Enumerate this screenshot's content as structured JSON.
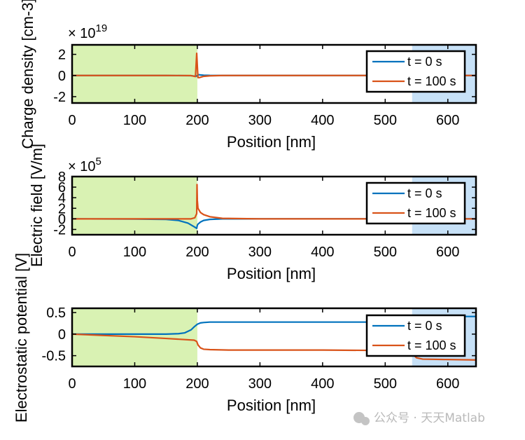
{
  "watermark": "公众号 · 天天Matlab",
  "colors": {
    "series0": "#0072BD",
    "series1": "#D95319",
    "region_left": "#D9F2B3",
    "region_right": "#C7E1F7"
  },
  "chart_data": [
    {
      "type": "line",
      "name": "charge-density",
      "xlabel": "Position [nm]",
      "ylabel": "Charge density [cm-3]",
      "ylabel_display": "Charge density [cm-3]",
      "multiplier_prefix": "× 10",
      "multiplier_exp": "19",
      "xlim": [
        0,
        645
      ],
      "ylim": [
        -2.6,
        2.9
      ],
      "xticks": [
        0,
        100,
        200,
        300,
        400,
        500,
        600
      ],
      "xtick_labels": [
        "0",
        "100",
        "200",
        "300",
        "400",
        "500",
        "600"
      ],
      "yticks": [
        -2,
        0,
        2
      ],
      "ytick_labels": [
        "-2",
        "0",
        "2"
      ],
      "regions": [
        {
          "x0": 0,
          "x1": 200,
          "color": "#D9F2B3"
        },
        {
          "x0": 543,
          "x1": 645,
          "color": "#C7E1F7"
        }
      ],
      "legend": "top-right",
      "series": [
        {
          "name": "t = 0 s",
          "x": [
            0,
            150,
            190,
            198,
            200,
            202,
            205,
            210,
            220,
            240,
            300,
            400,
            500,
            540,
            543,
            546,
            600,
            645
          ],
          "y": [
            0,
            0,
            -0.02,
            -0.08,
            0,
            0.08,
            0.05,
            0.03,
            0.01,
            0,
            0,
            0,
            0,
            0,
            0,
            0,
            0,
            0
          ]
        },
        {
          "name": "t = 100 s",
          "x": [
            0,
            150,
            190,
            197,
            199,
            200,
            201,
            203,
            210,
            220,
            240,
            300,
            400,
            500,
            540,
            543,
            546,
            600,
            645
          ],
          "y": [
            0,
            0,
            -0.01,
            -0.1,
            2.1,
            0.9,
            -0.2,
            -0.2,
            -0.08,
            -0.03,
            0,
            0,
            0,
            0,
            0,
            -0.05,
            0,
            0,
            0
          ]
        }
      ]
    },
    {
      "type": "line",
      "name": "electric-field",
      "xlabel": "Position [nm]",
      "ylabel": "Electric field [V/m]",
      "ylabel_display": "Electric field [V/m]",
      "multiplier_prefix": "× 10",
      "multiplier_exp": "5",
      "xlim": [
        0,
        645
      ],
      "ylim": [
        -3,
        8
      ],
      "xticks": [
        0,
        100,
        200,
        300,
        400,
        500,
        600
      ],
      "xtick_labels": [
        "0",
        "100",
        "200",
        "300",
        "400",
        "500",
        "600"
      ],
      "yticks": [
        -2,
        0,
        2,
        4,
        6,
        8
      ],
      "ytick_labels": [
        "-2",
        "0",
        "2",
        "4",
        "6",
        "8"
      ],
      "regions": [
        {
          "x0": 0,
          "x1": 200,
          "color": "#D9F2B3"
        },
        {
          "x0": 543,
          "x1": 645,
          "color": "#C7E1F7"
        }
      ],
      "legend": "top-right",
      "series": [
        {
          "name": "t = 0 s",
          "x": [
            0,
            100,
            150,
            170,
            185,
            195,
            199,
            200,
            201,
            205,
            210,
            220,
            240,
            300,
            400,
            500,
            645
          ],
          "y": [
            0,
            -0.03,
            -0.1,
            -0.3,
            -0.8,
            -1.5,
            -1.8,
            -1.2,
            -1.0,
            -0.6,
            -0.3,
            -0.1,
            0,
            0,
            0,
            0,
            0
          ]
        },
        {
          "name": "t = 100 s",
          "x": [
            0,
            100,
            150,
            190,
            196,
            199,
            199.5,
            200,
            201,
            205,
            210,
            220,
            240,
            300,
            400,
            500,
            645
          ],
          "y": [
            0,
            0,
            0,
            0,
            0.2,
            1.0,
            6.5,
            3.5,
            2.0,
            1.2,
            0.8,
            0.4,
            0.1,
            0,
            0,
            0,
            0
          ]
        }
      ]
    },
    {
      "type": "line",
      "name": "electrostatic-potential",
      "xlabel": "Position [nm]",
      "ylabel": "Electrostatic potential [V]",
      "ylabel_display": "Electrostatic potential [V]",
      "xlim": [
        0,
        645
      ],
      "ylim": [
        -0.75,
        0.6
      ],
      "xticks": [
        0,
        100,
        200,
        300,
        400,
        500,
        600
      ],
      "xtick_labels": [
        "0",
        "100",
        "200",
        "300",
        "400",
        "500",
        "600"
      ],
      "yticks": [
        -0.5,
        0,
        0.5
      ],
      "ytick_labels": [
        "-0.5",
        "0",
        "0.5"
      ],
      "regions": [
        {
          "x0": 0,
          "x1": 200,
          "color": "#D9F2B3"
        },
        {
          "x0": 543,
          "x1": 645,
          "color": "#C7E1F7"
        }
      ],
      "legend": "top-right",
      "series": [
        {
          "name": "t = 0 s",
          "x": [
            0,
            150,
            170,
            180,
            190,
            195,
            200,
            205,
            210,
            220,
            250,
            300,
            400,
            500,
            540,
            543,
            550,
            600,
            645
          ],
          "y": [
            0,
            0,
            0.01,
            0.03,
            0.1,
            0.17,
            0.23,
            0.26,
            0.27,
            0.28,
            0.28,
            0.28,
            0.28,
            0.28,
            0.28,
            0.35,
            0.4,
            0.41,
            0.41
          ]
        },
        {
          "name": "t = 100 s",
          "x": [
            0,
            50,
            100,
            150,
            195,
            199,
            201,
            205,
            210,
            220,
            250,
            300,
            400,
            500,
            540,
            543,
            550,
            560,
            600,
            645
          ],
          "y": [
            0,
            -0.03,
            -0.06,
            -0.1,
            -0.14,
            -0.17,
            -0.25,
            -0.32,
            -0.35,
            -0.36,
            -0.37,
            -0.37,
            -0.37,
            -0.38,
            -0.38,
            -0.45,
            -0.55,
            -0.58,
            -0.59,
            -0.6
          ]
        }
      ]
    }
  ]
}
